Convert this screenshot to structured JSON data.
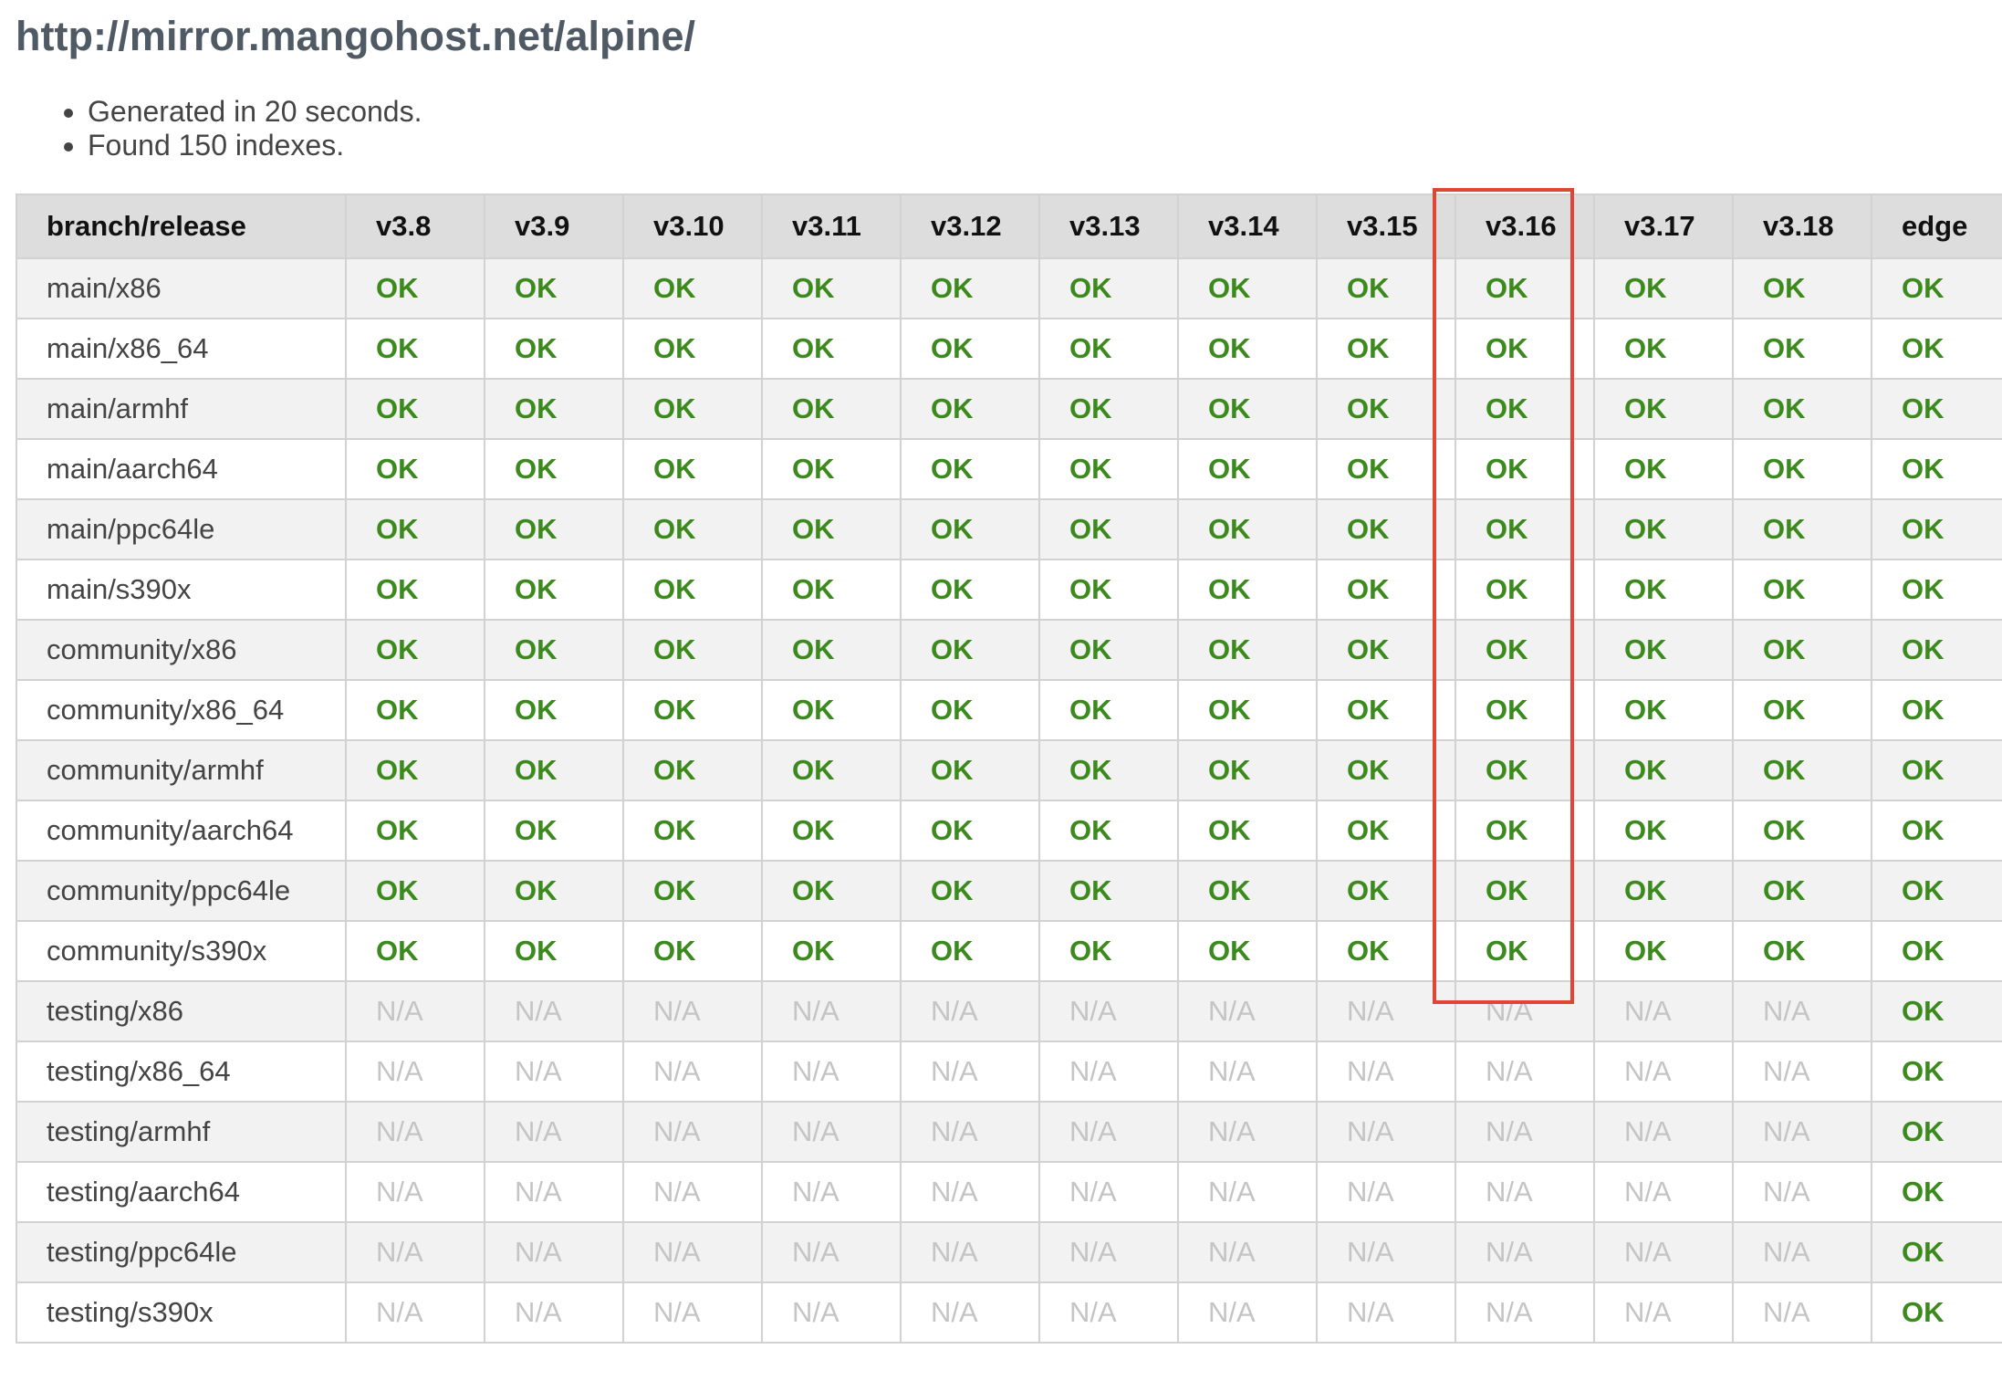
{
  "page": {
    "title": "http://mirror.mangohost.net/alpine/",
    "summary": [
      "Generated in 20 seconds.",
      "Found 150 indexes."
    ],
    "colors": {
      "ok": "#3c8a1e",
      "na": "#c4c4c4",
      "highlight": "#e04535",
      "header_bg": "#dddddd"
    }
  },
  "table": {
    "headers": [
      "branch/release",
      "v3.8",
      "v3.9",
      "v3.10",
      "v3.11",
      "v3.12",
      "v3.13",
      "v3.14",
      "v3.15",
      "v3.16",
      "v3.17",
      "v3.18",
      "edge"
    ],
    "highlighted_column": "v3.16",
    "rows": [
      {
        "branch": "main/x86",
        "cells": [
          "OK",
          "OK",
          "OK",
          "OK",
          "OK",
          "OK",
          "OK",
          "OK",
          "OK",
          "OK",
          "OK",
          "OK"
        ]
      },
      {
        "branch": "main/x86_64",
        "cells": [
          "OK",
          "OK",
          "OK",
          "OK",
          "OK",
          "OK",
          "OK",
          "OK",
          "OK",
          "OK",
          "OK",
          "OK"
        ]
      },
      {
        "branch": "main/armhf",
        "cells": [
          "OK",
          "OK",
          "OK",
          "OK",
          "OK",
          "OK",
          "OK",
          "OK",
          "OK",
          "OK",
          "OK",
          "OK"
        ]
      },
      {
        "branch": "main/aarch64",
        "cells": [
          "OK",
          "OK",
          "OK",
          "OK",
          "OK",
          "OK",
          "OK",
          "OK",
          "OK",
          "OK",
          "OK",
          "OK"
        ]
      },
      {
        "branch": "main/ppc64le",
        "cells": [
          "OK",
          "OK",
          "OK",
          "OK",
          "OK",
          "OK",
          "OK",
          "OK",
          "OK",
          "OK",
          "OK",
          "OK"
        ]
      },
      {
        "branch": "main/s390x",
        "cells": [
          "OK",
          "OK",
          "OK",
          "OK",
          "OK",
          "OK",
          "OK",
          "OK",
          "OK",
          "OK",
          "OK",
          "OK"
        ]
      },
      {
        "branch": "community/x86",
        "cells": [
          "OK",
          "OK",
          "OK",
          "OK",
          "OK",
          "OK",
          "OK",
          "OK",
          "OK",
          "OK",
          "OK",
          "OK"
        ]
      },
      {
        "branch": "community/x86_64",
        "cells": [
          "OK",
          "OK",
          "OK",
          "OK",
          "OK",
          "OK",
          "OK",
          "OK",
          "OK",
          "OK",
          "OK",
          "OK"
        ]
      },
      {
        "branch": "community/armhf",
        "cells": [
          "OK",
          "OK",
          "OK",
          "OK",
          "OK",
          "OK",
          "OK",
          "OK",
          "OK",
          "OK",
          "OK",
          "OK"
        ]
      },
      {
        "branch": "community/aarch64",
        "cells": [
          "OK",
          "OK",
          "OK",
          "OK",
          "OK",
          "OK",
          "OK",
          "OK",
          "OK",
          "OK",
          "OK",
          "OK"
        ]
      },
      {
        "branch": "community/ppc64le",
        "cells": [
          "OK",
          "OK",
          "OK",
          "OK",
          "OK",
          "OK",
          "OK",
          "OK",
          "OK",
          "OK",
          "OK",
          "OK"
        ]
      },
      {
        "branch": "community/s390x",
        "cells": [
          "OK",
          "OK",
          "OK",
          "OK",
          "OK",
          "OK",
          "OK",
          "OK",
          "OK",
          "OK",
          "OK",
          "OK"
        ]
      },
      {
        "branch": "testing/x86",
        "cells": [
          "N/A",
          "N/A",
          "N/A",
          "N/A",
          "N/A",
          "N/A",
          "N/A",
          "N/A",
          "N/A",
          "N/A",
          "N/A",
          "OK"
        ]
      },
      {
        "branch": "testing/x86_64",
        "cells": [
          "N/A",
          "N/A",
          "N/A",
          "N/A",
          "N/A",
          "N/A",
          "N/A",
          "N/A",
          "N/A",
          "N/A",
          "N/A",
          "OK"
        ]
      },
      {
        "branch": "testing/armhf",
        "cells": [
          "N/A",
          "N/A",
          "N/A",
          "N/A",
          "N/A",
          "N/A",
          "N/A",
          "N/A",
          "N/A",
          "N/A",
          "N/A",
          "OK"
        ]
      },
      {
        "branch": "testing/aarch64",
        "cells": [
          "N/A",
          "N/A",
          "N/A",
          "N/A",
          "N/A",
          "N/A",
          "N/A",
          "N/A",
          "N/A",
          "N/A",
          "N/A",
          "OK"
        ]
      },
      {
        "branch": "testing/ppc64le",
        "cells": [
          "N/A",
          "N/A",
          "N/A",
          "N/A",
          "N/A",
          "N/A",
          "N/A",
          "N/A",
          "N/A",
          "N/A",
          "N/A",
          "OK"
        ]
      },
      {
        "branch": "testing/s390x",
        "cells": [
          "N/A",
          "N/A",
          "N/A",
          "N/A",
          "N/A",
          "N/A",
          "N/A",
          "N/A",
          "N/A",
          "N/A",
          "N/A",
          "OK"
        ]
      }
    ]
  }
}
